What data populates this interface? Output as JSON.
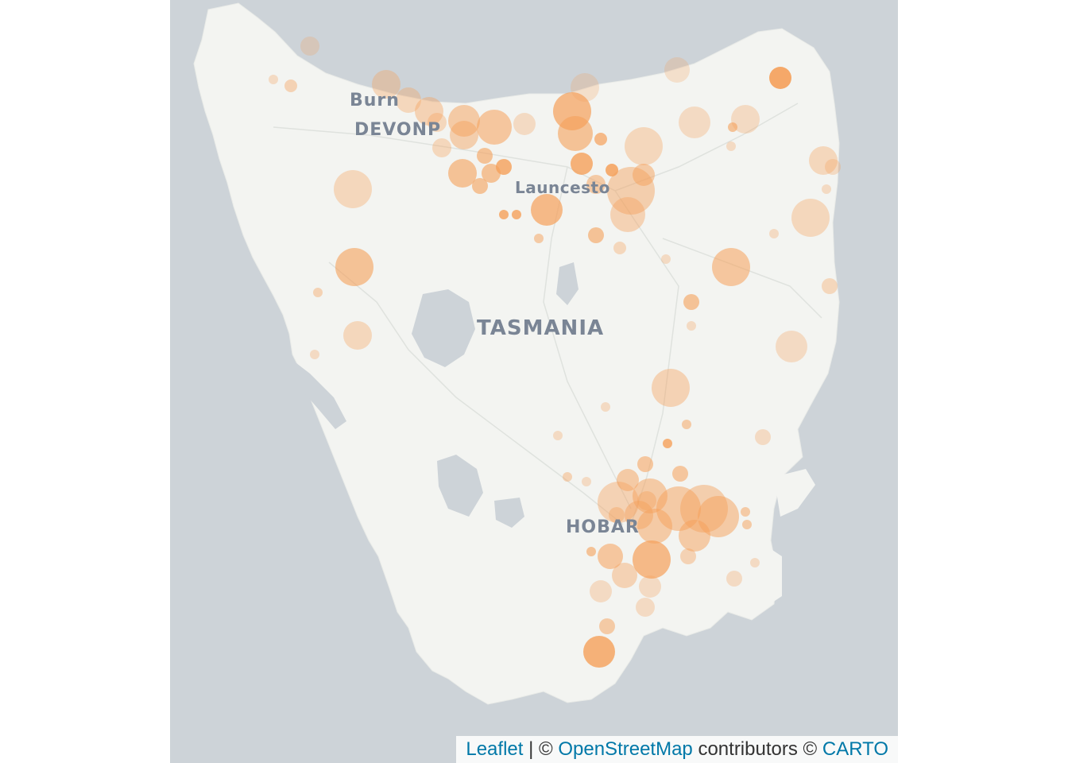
{
  "map": {
    "labels": {
      "region": "TASMANIA",
      "hobart": "HOBAR",
      "devonport": "DEVONP",
      "launceston": "Launcesto",
      "burnie": "Burn"
    },
    "colors": {
      "water": "#cdd3d8",
      "land": "#f3f4f1",
      "marker": "#f5a05a"
    }
  },
  "attribution": {
    "leaflet": "Leaflet",
    "sep1": " | © ",
    "osm": "OpenStreetMap",
    "contributors": " contributors © ",
    "carto": "CARTO"
  }
}
